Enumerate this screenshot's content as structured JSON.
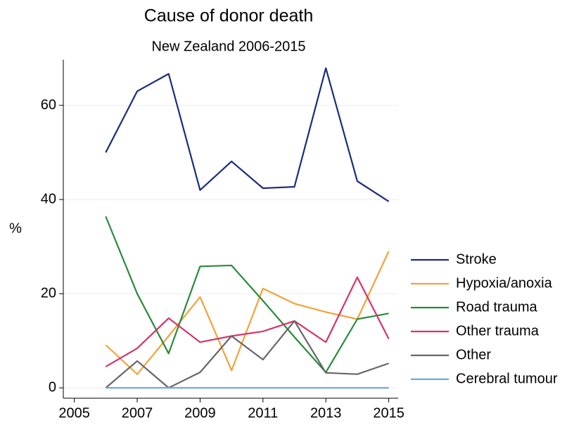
{
  "chart_data": {
    "type": "line",
    "title": "Cause of donor death",
    "subtitle": "New Zealand 2006-2015",
    "y_label": "%",
    "x": [
      2006,
      2007,
      2008,
      2009,
      2010,
      2011,
      2012,
      2013,
      2014,
      2015
    ],
    "series": [
      {
        "name": "Stroke",
        "color": "#1a2d7c",
        "values": [
          50,
          63,
          66.7,
          42,
          48.1,
          42.4,
          42.7,
          67.9,
          43.9,
          39.6
        ]
      },
      {
        "name": "Hypoxia/anoxia",
        "color": "#f4a23e",
        "values": [
          9.1,
          2.9,
          11,
          19.3,
          3.7,
          21.1,
          17.9,
          16.1,
          14.6,
          29
        ]
      },
      {
        "name": "Road trauma",
        "color": "#2a8a3c",
        "values": [
          36.4,
          20,
          7.3,
          25.8,
          26,
          18.5,
          10.8,
          3.3,
          14.6,
          15.8
        ]
      },
      {
        "name": "Other trauma",
        "color": "#d6336c",
        "values": [
          4.5,
          8.4,
          14.8,
          9.7,
          11,
          12,
          14.2,
          9.7,
          23.5,
          10.4
        ]
      },
      {
        "name": "Other",
        "color": "#666666",
        "values": [
          0,
          5.7,
          0,
          3.3,
          11,
          6,
          14.2,
          3.2,
          2.9,
          5.2
        ]
      },
      {
        "name": "Cerebral tumour",
        "color": "#6fa8dc",
        "values": [
          0,
          0,
          0,
          0,
          0,
          0,
          0,
          0,
          0,
          0
        ]
      }
    ],
    "xlim": [
      2004.65,
      2015.3
    ],
    "xticks": [
      2005,
      2007,
      2009,
      2011,
      2013,
      2015
    ],
    "ylim": [
      -2.2,
      69.7
    ],
    "yticks": [
      0,
      20,
      40,
      60
    ],
    "grid": true,
    "legend": "right"
  }
}
